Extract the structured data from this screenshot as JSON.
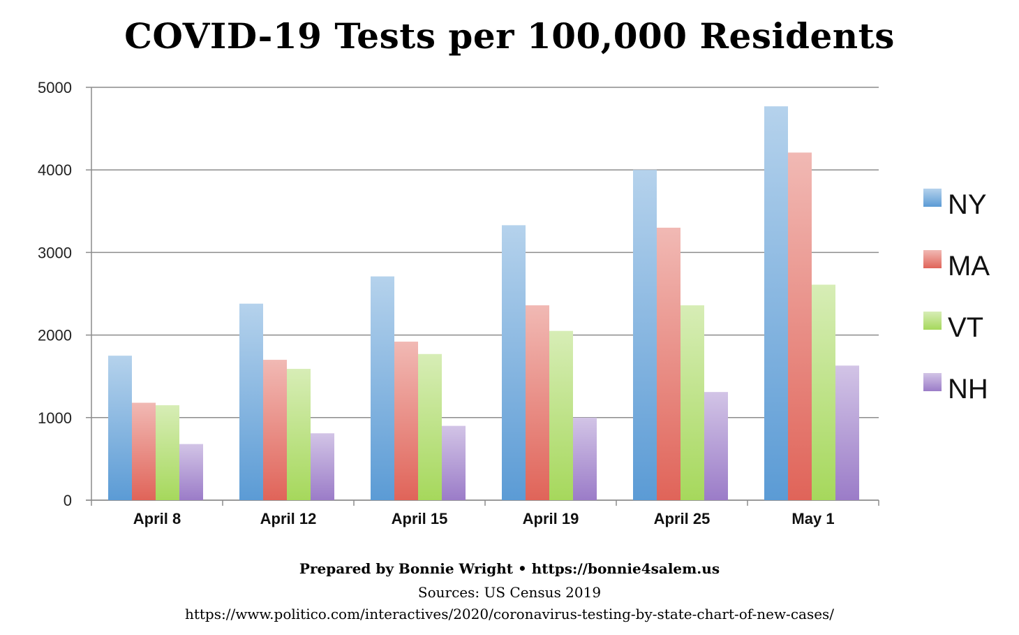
{
  "chart_data": {
    "type": "bar",
    "title": "COVID-19 Tests per 100,000 Residents",
    "categories": [
      "April 8",
      "April 12",
      "April 15",
      "April 19",
      "April 25",
      "May 1"
    ],
    "series": [
      {
        "name": "NY",
        "values": [
          1750,
          2380,
          2710,
          3330,
          4000,
          4770
        ],
        "color": "#5b9bd5"
      },
      {
        "name": "MA",
        "values": [
          1180,
          1700,
          1920,
          2360,
          3300,
          4210
        ],
        "color": "#e06459"
      },
      {
        "name": "VT",
        "values": [
          1150,
          1590,
          1770,
          2050,
          2360,
          2610
        ],
        "color": "#a6d85c"
      },
      {
        "name": "NH",
        "values": [
          680,
          810,
          900,
          1000,
          1310,
          1630
        ],
        "color": "#9b7cc8"
      }
    ],
    "ylim": [
      0,
      5000
    ],
    "yticks": [
      "0",
      "1000",
      "2000",
      "3000",
      "4000",
      "5000"
    ],
    "xlabel": "",
    "ylabel": "",
    "grid": true,
    "legend_position": "right"
  },
  "footer": {
    "credit": "Prepared by Bonnie Wright • https://bonnie4salem.us",
    "sources": "Sources: US Census 2019",
    "url": "https://www.politico.com/interactives/2020/coronavirus-testing-by-state-chart-of-new-cases/"
  }
}
